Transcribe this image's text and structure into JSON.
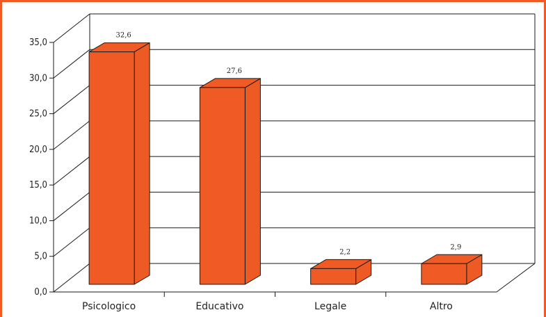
{
  "chart_data": {
    "type": "bar",
    "style": "3d",
    "categories": [
      "Psicologico",
      "Educativo",
      "Legale",
      "Altro"
    ],
    "values": [
      32.6,
      27.6,
      2.2,
      2.9
    ],
    "data_labels": [
      "32,6",
      "27,6",
      "2,2",
      "2,9"
    ],
    "ylim": [
      0,
      35
    ],
    "yticks": [
      "0,0",
      "5,0",
      "10,0",
      "15,0",
      "20,0",
      "25,0",
      "30,0",
      "35,0"
    ],
    "grid": true,
    "legend": "none",
    "title": "",
    "xlabel": "",
    "ylabel": ""
  },
  "colors": {
    "frame": "#f05a24",
    "bar_front": "#f05a24",
    "bar_top": "#f05a24",
    "bar_side": "#ee5a24",
    "bar_edge": "#1a1a1a",
    "grid": "#1a1a1a"
  }
}
